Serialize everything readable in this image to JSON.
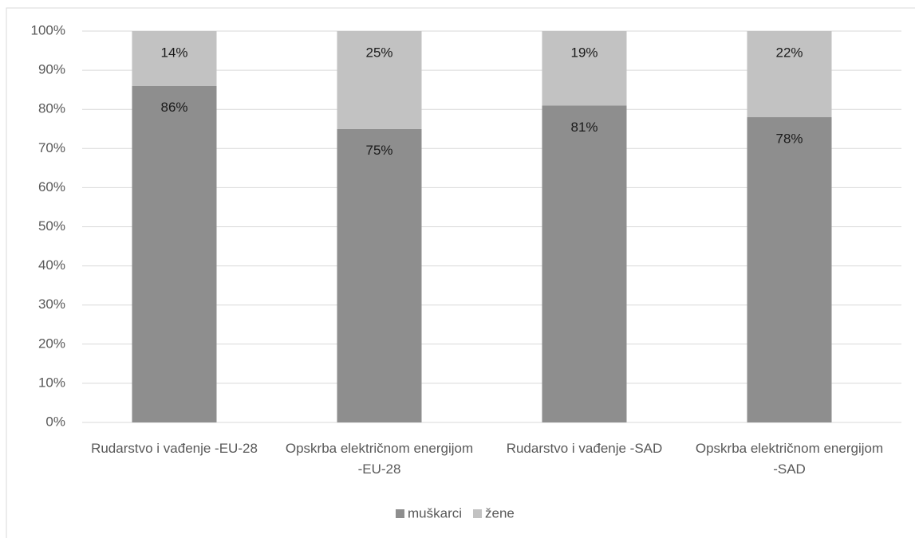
{
  "chart_data": {
    "type": "stacked_bar",
    "categories": [
      "Rudarstvo i vađenje -EU-28",
      "Opskrba električnom energijom -EU-28",
      "Rudarstvo i vađenje -SAD",
      "Opskrba električnom energijom -SAD"
    ],
    "series": [
      {
        "name": "muškarci",
        "color": "#8e8e8e",
        "values": [
          86,
          75,
          81,
          78
        ],
        "value_labels": [
          "86%",
          "75%",
          "81%",
          "78%"
        ]
      },
      {
        "name": "žene",
        "color": "#c2c2c2",
        "values": [
          14,
          25,
          19,
          22
        ],
        "value_labels": [
          "14%",
          "25%",
          "19%",
          "22%"
        ]
      }
    ],
    "ylim": [
      0,
      100
    ],
    "yticks": [
      {
        "value": 0,
        "label": "0%"
      },
      {
        "value": 10,
        "label": "10%"
      },
      {
        "value": 20,
        "label": "20%"
      },
      {
        "value": 30,
        "label": "30%"
      },
      {
        "value": 40,
        "label": "40%"
      },
      {
        "value": 50,
        "label": "50%"
      },
      {
        "value": 60,
        "label": "60%"
      },
      {
        "value": 70,
        "label": "70%"
      },
      {
        "value": 80,
        "label": "80%"
      },
      {
        "value": 90,
        "label": "90%"
      },
      {
        "value": 100,
        "label": "100%"
      }
    ],
    "grid": true,
    "legend": "bottom"
  }
}
